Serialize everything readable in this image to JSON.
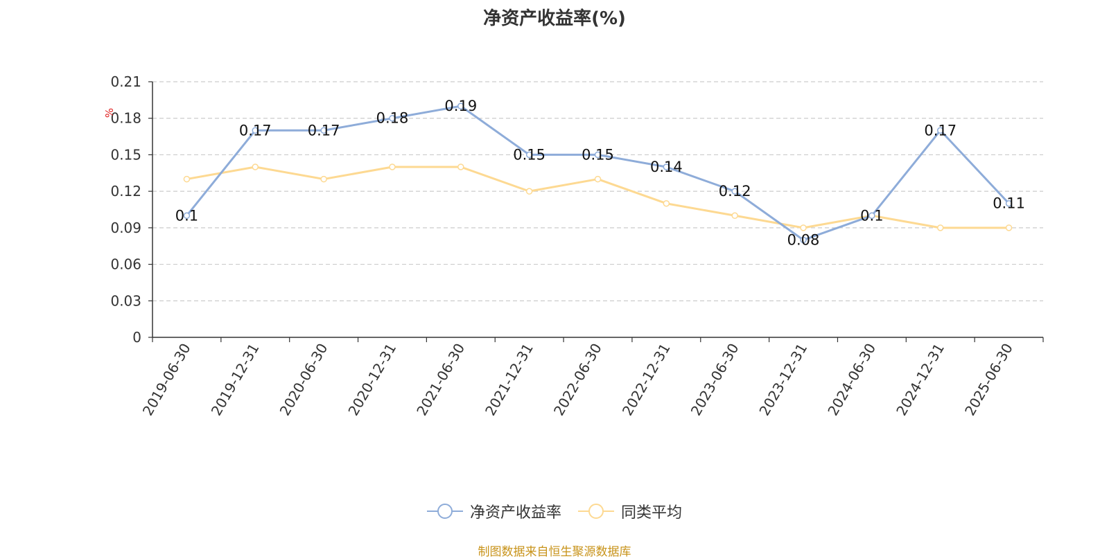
{
  "chart_data": {
    "type": "line",
    "title": "净资产收益率(%)",
    "ylabel": "%",
    "categories": [
      "2019-06-30",
      "2019-12-31",
      "2020-06-30",
      "2020-12-31",
      "2021-06-30",
      "2021-12-31",
      "2022-06-30",
      "2022-12-31",
      "2023-06-30",
      "2023-12-31",
      "2024-06-30",
      "2024-12-31",
      "2025-06-30"
    ],
    "ylim": [
      0,
      0.21
    ],
    "yticks": [
      "0",
      "0.03",
      "0.06",
      "0.09",
      "0.12",
      "0.15",
      "0.18",
      "0.21"
    ],
    "grid": true,
    "legend_position": "bottom",
    "series": [
      {
        "name": "净资产收益率",
        "color": "#8eacd9",
        "values": [
          0.1,
          0.17,
          0.17,
          0.18,
          0.19,
          0.15,
          0.15,
          0.14,
          0.12,
          0.08,
          0.1,
          0.17,
          0.11
        ],
        "labels": [
          "0.1",
          "0.17",
          "0.17",
          "0.18",
          "0.19",
          "0.15",
          "0.15",
          "0.14",
          "0.12",
          "0.08",
          "0.1",
          "0.17",
          "0.11"
        ]
      },
      {
        "name": "同类平均",
        "color": "#fdd992",
        "values": [
          0.13,
          0.14,
          0.13,
          0.14,
          0.14,
          0.12,
          0.13,
          0.11,
          0.1,
          0.09,
          0.1,
          0.09,
          0.09
        ]
      }
    ]
  },
  "source_text": "制图数据来自恒生聚源数据库"
}
